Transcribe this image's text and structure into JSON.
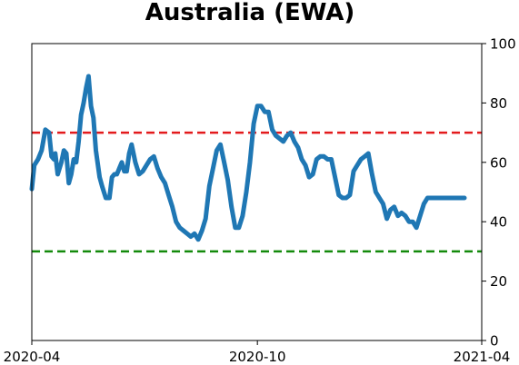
{
  "chart_data": {
    "type": "line",
    "title": "Australia (EWA)",
    "xlabel": "",
    "ylabel": "",
    "x_ticks": [
      "2020-04",
      "2020-10",
      "2021-04"
    ],
    "y_ticks": [
      "0",
      "20",
      "40",
      "60",
      "80",
      "100"
    ],
    "ylim": [
      0,
      100
    ],
    "y_axis_side": "right",
    "grid": false,
    "reference_lines": [
      {
        "y": 70,
        "color": "#e31a1c",
        "style": "dashed"
      },
      {
        "y": 30,
        "color": "#138a0b",
        "style": "dashed"
      }
    ],
    "series_color": "#1f77b4",
    "series": [
      {
        "x": [
          "2020-04-01",
          "2020-04-03",
          "2020-04-06",
          "2020-04-09",
          "2020-04-12",
          "2020-04-15",
          "2020-04-17",
          "2020-04-19",
          "2020-04-20",
          "2020-04-22",
          "2020-04-25",
          "2020-04-27",
          "2020-04-29",
          "2020-05-01",
          "2020-05-03",
          "2020-05-05",
          "2020-05-07",
          "2020-05-09",
          "2020-05-11",
          "2020-05-13",
          "2020-05-15",
          "2020-05-17",
          "2020-05-19",
          "2020-05-21",
          "2020-05-23",
          "2020-05-26",
          "2020-05-28",
          "2020-05-31",
          "2020-06-03",
          "2020-06-05",
          "2020-06-07",
          "2020-06-09",
          "2020-06-11",
          "2020-06-13",
          "2020-06-15",
          "2020-06-17",
          "2020-06-19",
          "2020-06-21",
          "2020-06-24",
          "2020-06-27",
          "2020-06-30",
          "2020-07-03",
          "2020-07-06",
          "2020-07-09",
          "2020-07-12",
          "2020-07-15",
          "2020-07-18",
          "2020-07-21",
          "2020-07-24",
          "2020-07-27",
          "2020-07-30",
          "2020-08-02",
          "2020-08-05",
          "2020-08-08",
          "2020-08-11",
          "2020-08-14",
          "2020-08-17",
          "2020-08-20",
          "2020-08-23",
          "2020-08-26",
          "2020-08-29",
          "2020-09-01",
          "2020-09-04",
          "2020-09-07",
          "2020-09-10",
          "2020-09-13",
          "2020-09-16",
          "2020-09-19",
          "2020-09-22",
          "2020-09-25",
          "2020-09-28",
          "2020-10-01",
          "2020-10-04",
          "2020-10-07",
          "2020-10-10",
          "2020-10-13",
          "2020-10-16",
          "2020-10-19",
          "2020-10-22",
          "2020-10-25",
          "2020-10-28",
          "2020-10-31",
          "2020-11-03",
          "2020-11-06",
          "2020-11-09",
          "2020-11-12",
          "2020-11-15",
          "2020-11-18",
          "2020-11-21",
          "2020-11-24",
          "2020-11-27",
          "2020-11-30",
          "2020-12-03",
          "2020-12-06",
          "2020-12-09",
          "2020-12-12",
          "2020-12-15",
          "2020-12-18",
          "2020-12-21",
          "2020-12-24",
          "2020-12-27",
          "2020-12-30",
          "2021-01-02",
          "2021-01-05",
          "2021-01-08",
          "2021-01-11",
          "2021-01-14",
          "2021-01-17",
          "2021-01-20",
          "2021-01-23",
          "2021-01-26",
          "2021-01-29",
          "2021-02-01",
          "2021-02-04",
          "2021-02-07",
          "2021-02-10",
          "2021-02-13",
          "2021-02-16",
          "2021-02-19",
          "2021-02-22",
          "2021-02-25",
          "2021-02-28",
          "2021-03-03",
          "2021-03-06",
          "2021-03-09",
          "2021-03-12",
          "2021-03-15",
          "2021-03-18"
        ],
        "values": [
          51,
          59,
          61,
          64,
          71,
          70,
          62,
          61,
          63,
          56,
          60,
          64,
          63,
          53,
          56,
          61,
          60,
          67,
          76,
          80,
          85,
          89,
          79,
          75,
          64,
          55,
          52,
          48,
          48,
          55,
          56,
          56,
          58,
          60,
          57,
          57,
          63,
          66,
          60,
          56,
          57,
          59,
          61,
          62,
          58,
          55,
          53,
          49,
          45,
          40,
          38,
          37,
          36,
          35,
          36,
          34,
          37,
          41,
          52,
          58,
          64,
          66,
          60,
          54,
          45,
          38,
          38,
          42,
          50,
          60,
          73,
          79,
          79,
          77,
          77,
          71,
          69,
          68,
          67,
          69,
          70,
          67,
          65,
          61,
          59,
          55,
          56,
          61,
          62,
          62,
          61,
          61,
          55,
          49,
          48,
          48,
          49,
          57,
          59,
          61,
          62,
          63,
          56,
          50,
          48,
          46,
          41,
          44,
          45,
          42,
          43,
          42,
          40,
          40,
          38,
          42,
          46,
          48,
          48,
          48,
          48,
          48,
          48,
          48,
          48,
          48,
          48,
          48
        ],
        "name": ""
      }
    ]
  }
}
